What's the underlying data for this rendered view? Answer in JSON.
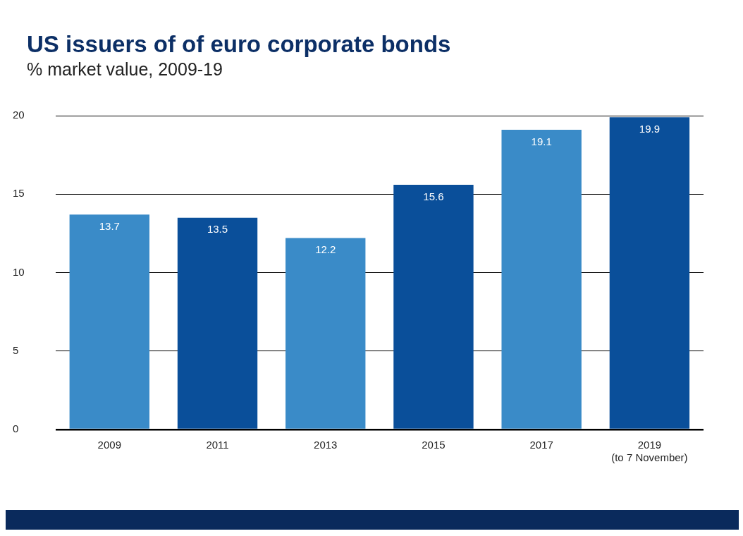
{
  "chart_data": {
    "type": "bar",
    "title": "US issuers of of euro corporate bonds",
    "subtitle": "% market value, 2009-19",
    "categories": [
      "2009",
      "2011",
      "2013",
      "2015",
      "2017",
      "2019 (to 7 November)"
    ],
    "values": [
      13.7,
      13.5,
      12.2,
      15.6,
      19.1,
      19.9
    ],
    "colors": [
      "#3a8bc8",
      "#0a4f9a",
      "#3a8bc8",
      "#0a4f9a",
      "#3a8bc8",
      "#0a4f9a"
    ],
    "ylim": [
      0,
      20
    ],
    "yticks": [
      0,
      5,
      10,
      15,
      20
    ],
    "grid": "y",
    "data_labels": true,
    "legend": false
  }
}
